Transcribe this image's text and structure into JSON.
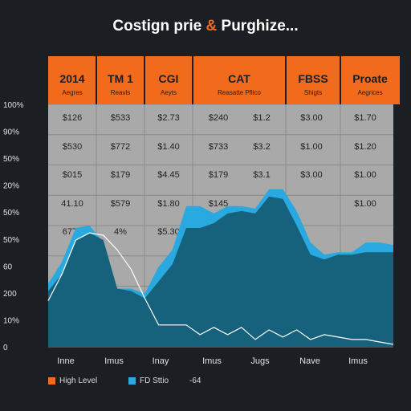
{
  "title": {
    "part1": "Costign prie ",
    "amp": "&",
    "part2": " Purghize..."
  },
  "colors": {
    "background": "#1b1e22",
    "header": "#f26a1b",
    "grid_area": "#a9a9a9",
    "area_light": "#29a9e0",
    "area_dark": "#16617b",
    "line": "#ffffff"
  },
  "chart_data": {
    "type": "area",
    "columns": [
      {
        "header": "2014",
        "sub": "Aegres"
      },
      {
        "header": "TM 1",
        "sub": "Reavls"
      },
      {
        "header": "CGI",
        "sub": "Aeyts"
      },
      {
        "header": "CAT",
        "sub": "Reasatte Pflico"
      },
      {
        "header": "FBSS",
        "sub": "Shigts"
      },
      {
        "header": "Proate",
        "sub": "Aegrices"
      }
    ],
    "table_rows": [
      [
        "$126",
        "$533",
        "$2.73",
        "$240",
        "$1.2",
        "$3.00",
        "$1.70"
      ],
      [
        "$530",
        "$772",
        "$1.40",
        "$733",
        "$3.2",
        "$1.00",
        "$1.20"
      ],
      [
        "$015",
        "$179",
        "$4.45",
        "$179",
        "$3.1",
        "$3.00",
        "$1.00"
      ],
      [
        "41.10",
        "$579",
        "$1.80",
        "$145",
        "",
        "",
        "$1.00"
      ],
      [
        "6776",
        "4%",
        "$5.30",
        "",
        "",
        "",
        ""
      ]
    ],
    "y_tick_labels": [
      "100%",
      "90%",
      "50%",
      "20%",
      "50%",
      "50%",
      "60",
      "200",
      "10%",
      "0"
    ],
    "x_tick_labels": [
      "Inne",
      "Imus",
      "Inay",
      "Imus",
      "Jugs",
      "Nave",
      "Imus"
    ],
    "x": [
      0,
      0.5,
      1,
      1.5,
      2,
      2.5,
      3,
      3.5,
      4,
      4.5,
      5,
      5.5,
      6,
      6.5,
      7,
      7.5,
      8,
      8.5,
      9,
      9.5,
      10,
      10.5,
      11,
      11.5,
      12,
      12.5
    ],
    "series": [
      {
        "name": "High Level",
        "values": [
          26,
          35,
          49,
          50,
          43,
          24,
          24,
          22,
          33,
          40,
          58,
          58,
          55,
          58,
          58,
          57,
          65,
          65,
          56,
          43,
          38,
          39,
          39,
          43,
          43,
          42
        ]
      },
      {
        "name": "FD Sttio",
        "values": [
          23,
          30,
          44,
          47,
          44,
          24,
          23,
          20,
          27,
          34,
          49,
          49,
          51,
          55,
          56,
          55,
          62,
          61,
          50,
          38,
          36,
          38,
          38,
          39,
          39,
          39
        ]
      },
      {
        "name": "",
        "values": [
          19,
          30,
          44,
          47,
          46,
          40,
          32,
          20,
          9,
          9,
          9,
          5,
          8,
          5,
          8,
          3,
          7,
          4,
          7,
          3,
          5,
          4,
          3,
          3,
          2,
          1
        ]
      }
    ],
    "legend": [
      {
        "label": "High Level",
        "color": "#f26a1b"
      },
      {
        "label": "FD Sttio",
        "color": "#29a9e0"
      },
      {
        "label": "-64",
        "color": ""
      }
    ],
    "legend_position": "bottom-left",
    "ylim": [
      0,
      100
    ],
    "grid": true
  }
}
